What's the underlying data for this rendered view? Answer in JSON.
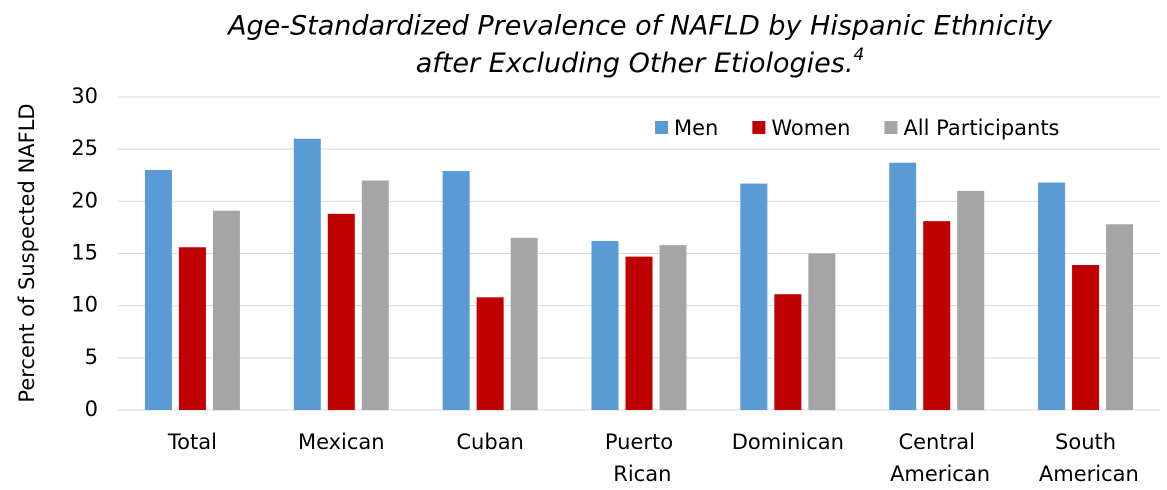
{
  "chart_data": {
    "type": "bar",
    "title": [
      "Age-Standardized Prevalence of NAFLD by Hispanic Ethnicity",
      "after Excluding Other Etiologies."
    ],
    "title_footnote": "4",
    "y_label": "Percent of Suspected NAFLD",
    "categories": [
      "Total",
      "Mexican",
      "Cuban",
      "Puerto Rican",
      "Dominican",
      "Central American",
      "South American"
    ],
    "series": [
      {
        "name": "Men",
        "color": "#5b9bd5",
        "values": [
          23.0,
          26.0,
          22.9,
          16.2,
          21.7,
          23.7,
          21.8
        ]
      },
      {
        "name": "Women",
        "color": "#c00000",
        "values": [
          15.6,
          18.8,
          10.8,
          14.7,
          11.1,
          18.1,
          13.9
        ]
      },
      {
        "name": "All Participants",
        "color": "#a5a5a5",
        "values": [
          19.1,
          22.0,
          16.5,
          15.8,
          15.0,
          21.0,
          17.8
        ]
      }
    ],
    "ylim": [
      0,
      30
    ],
    "yticks": [
      0,
      5,
      10,
      15,
      20,
      25,
      30
    ],
    "grid": true,
    "legend": "top-right"
  }
}
